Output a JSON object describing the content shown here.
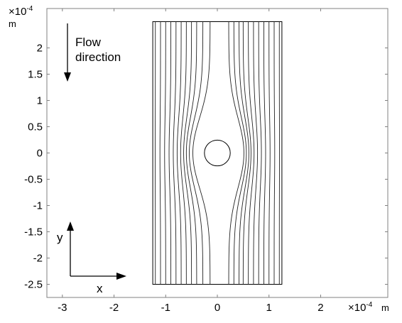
{
  "chart_data": {
    "type": "streamline",
    "x_ticks": [
      "-3",
      "-2",
      "-1",
      "0",
      "1",
      "2"
    ],
    "y_ticks": [
      "2",
      "1.5",
      "1",
      "0.5",
      "0",
      "-0.5",
      "-1",
      "-1.5",
      "-2",
      "-2.5"
    ],
    "x_tick_values": [
      -3,
      -2,
      -1,
      0,
      1,
      2
    ],
    "y_tick_values": [
      2,
      1.5,
      1,
      0.5,
      0,
      -0.5,
      -1,
      -1.5,
      -2,
      -2.5
    ],
    "xlim": [
      -3.3,
      3.3
    ],
    "ylim": [
      -2.75,
      2.75
    ],
    "x_multiplier": "×10",
    "x_exponent": "-4",
    "x_unit": "m",
    "y_multiplier": "×10",
    "y_exponent": "-4",
    "y_unit": "m",
    "domain": {
      "x": [
        -1.25,
        1.25
      ],
      "y": [
        -2.5,
        2.5
      ]
    },
    "obstacle": {
      "center": [
        0,
        0
      ],
      "radius": 0.25
    },
    "streamline_x_at_inlet": [
      -1.2,
      -1.1,
      -1.0,
      -0.9,
      -0.8,
      -0.7,
      -0.6,
      -0.5,
      -0.4,
      -0.28,
      -0.14,
      0.22,
      0.32,
      0.42,
      0.5,
      0.6,
      0.7,
      0.8,
      0.9,
      1.0,
      1.1,
      1.2
    ],
    "annotations": {
      "flow_line1": "Flow",
      "flow_line2": "direction",
      "x_axis_label": "x",
      "y_axis_label": "y"
    }
  }
}
